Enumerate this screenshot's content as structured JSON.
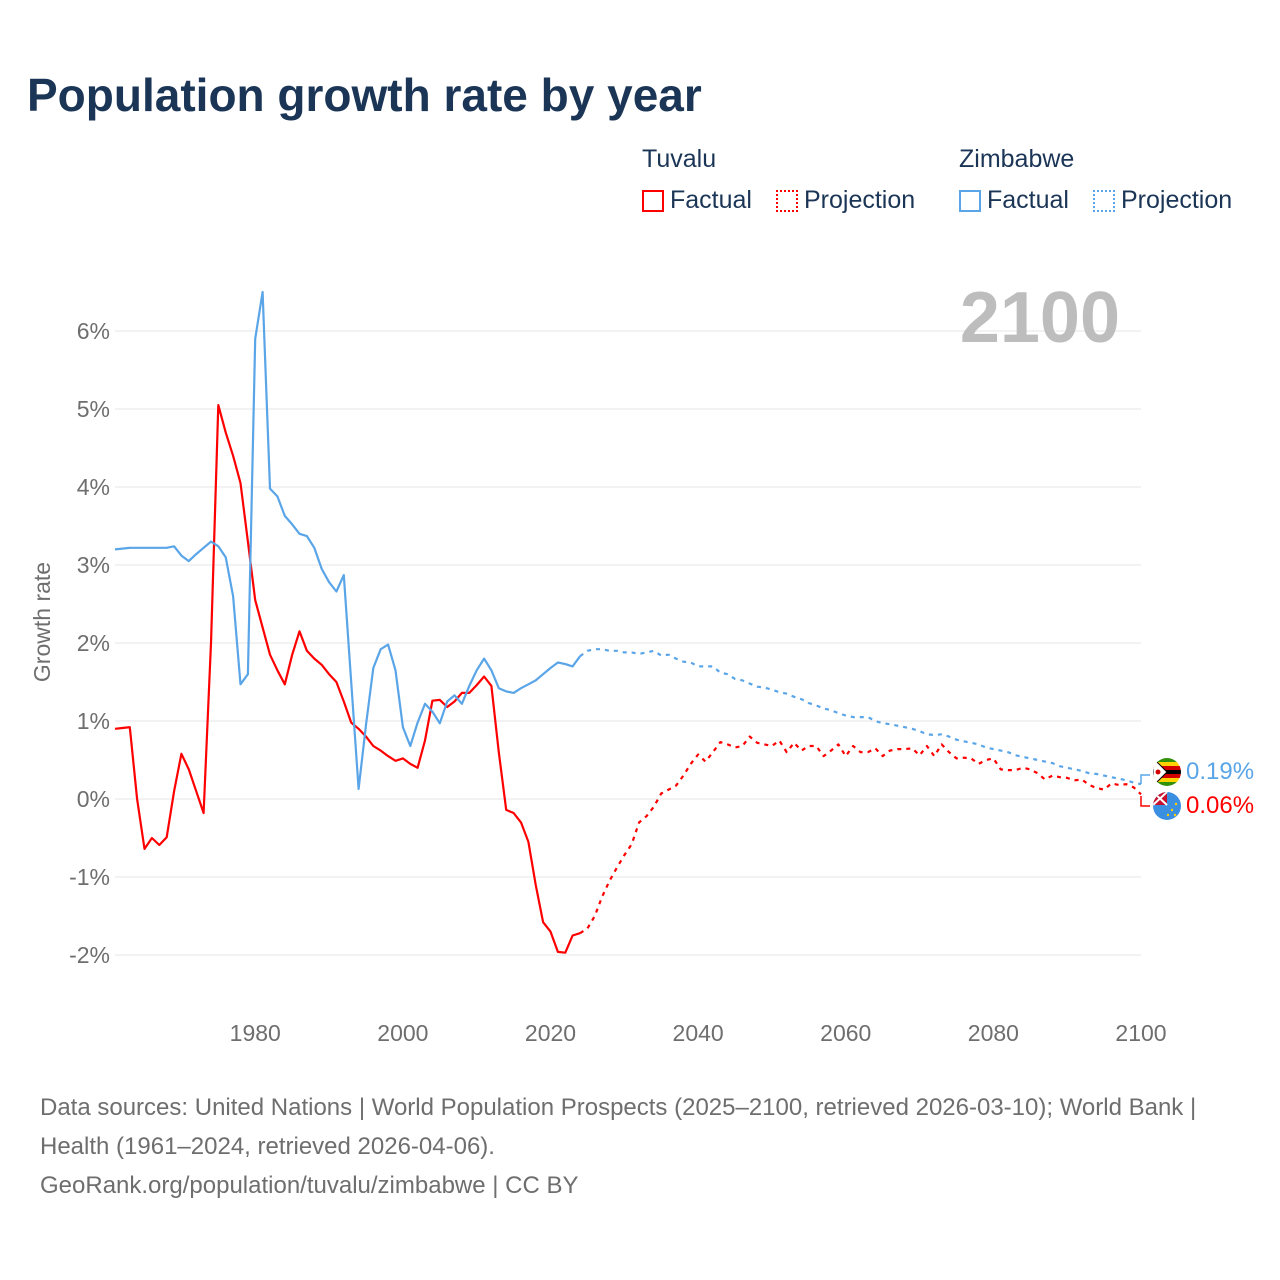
{
  "title": "Population growth rate by year",
  "legend": {
    "groups": [
      {
        "name": "Tuvalu",
        "factual": "Factual",
        "projection": "Projection",
        "color": "#ff0000"
      },
      {
        "name": "Zimbabwe",
        "factual": "Factual",
        "projection": "Projection",
        "color": "#5aa5e8"
      }
    ]
  },
  "footer": {
    "sources": "Data sources: United Nations | World Population Prospects (2025–2100, retrieved 2026-03-10); World Bank | Health (1961–2024, retrieved 2026-04-06).",
    "credit": "GeoRank.org/population/tuvalu/zimbabwe | CC BY"
  },
  "chart_data": {
    "type": "line",
    "title": "Population growth rate by year",
    "ylabel": "Growth rate",
    "xlabel": "",
    "year_label": "2100",
    "xlim": [
      1961,
      2100
    ],
    "ylim": [
      -2.5,
      6.6
    ],
    "x_ticks": [
      "1980",
      "2000",
      "2020",
      "2040",
      "2060",
      "2080",
      "2100"
    ],
    "y_ticks": [
      "-2%",
      "-1%",
      "0%",
      "1%",
      "2%",
      "3%",
      "4%",
      "5%",
      "6%"
    ],
    "grid": true,
    "legend_position": "top-right",
    "series": [
      {
        "name": "Tuvalu Factual",
        "color": "#ff0000",
        "dashed": false,
        "start_year": 1961,
        "values": [
          0.9,
          0.91,
          0.92,
          0.0,
          -0.64,
          -0.5,
          -0.59,
          -0.49,
          0.1,
          0.58,
          0.38,
          0.1,
          -0.18,
          2.0,
          5.05,
          4.7,
          4.4,
          4.05,
          3.3,
          2.55,
          2.2,
          1.85,
          1.65,
          1.47,
          1.85,
          2.15,
          1.9,
          1.8,
          1.72,
          1.6,
          1.5,
          1.25,
          0.98,
          0.9,
          0.8,
          0.68,
          0.62,
          0.55,
          0.49,
          0.52,
          0.45,
          0.4,
          0.75,
          1.26,
          1.27,
          1.18,
          1.25,
          1.36,
          1.36,
          1.46,
          1.57,
          1.45,
          0.6,
          -0.14,
          -0.18,
          -0.3,
          -0.55,
          -1.1,
          -1.58,
          -1.7,
          -1.96,
          -1.97,
          -1.75,
          -1.72
        ]
      },
      {
        "name": "Tuvalu Projection",
        "color": "#ff0000",
        "dashed": true,
        "start_year": 2024,
        "values": [
          -1.72,
          -1.66,
          -1.5,
          -1.25,
          -1.05,
          -0.88,
          -0.72,
          -0.58,
          -0.3,
          -0.22,
          -0.1,
          0.07,
          0.12,
          0.17,
          0.3,
          0.45,
          0.57,
          0.48,
          0.6,
          0.73,
          0.7,
          0.66,
          0.68,
          0.8,
          0.72,
          0.7,
          0.68,
          0.75,
          0.6,
          0.72,
          0.62,
          0.68,
          0.68,
          0.55,
          0.62,
          0.7,
          0.55,
          0.68,
          0.6,
          0.6,
          0.65,
          0.55,
          0.62,
          0.64,
          0.64,
          0.65,
          0.56,
          0.68,
          0.55,
          0.7,
          0.6,
          0.52,
          0.53,
          0.52,
          0.45,
          0.5,
          0.52,
          0.38,
          0.37,
          0.37,
          0.4,
          0.38,
          0.33,
          0.25,
          0.3,
          0.28,
          0.27,
          0.24,
          0.25,
          0.18,
          0.14,
          0.12,
          0.2,
          0.18,
          0.19,
          0.15,
          0.06
        ]
      },
      {
        "name": "Zimbabwe Factual",
        "color": "#5aa5e8",
        "dashed": false,
        "start_year": 1961,
        "values": [
          3.2,
          3.21,
          3.22,
          3.22,
          3.22,
          3.22,
          3.22,
          3.22,
          3.24,
          3.12,
          3.05,
          3.14,
          3.22,
          3.3,
          3.24,
          3.1,
          2.6,
          1.47,
          1.6,
          5.9,
          6.5,
          3.98,
          3.88,
          3.63,
          3.52,
          3.4,
          3.37,
          3.22,
          2.95,
          2.78,
          2.66,
          2.87,
          1.5,
          0.13,
          0.95,
          1.68,
          1.92,
          1.98,
          1.65,
          0.92,
          0.68,
          0.98,
          1.22,
          1.12,
          0.97,
          1.25,
          1.33,
          1.22,
          1.45,
          1.65,
          1.8,
          1.65,
          1.42,
          1.38,
          1.36,
          1.42,
          1.47,
          1.52,
          1.6,
          1.68,
          1.75,
          1.73,
          1.7,
          1.83
        ]
      },
      {
        "name": "Zimbabwe Projection",
        "color": "#5aa5e8",
        "dashed": true,
        "start_year": 2024,
        "values": [
          1.83,
          1.9,
          1.92,
          1.92,
          1.9,
          1.9,
          1.88,
          1.88,
          1.86,
          1.88,
          1.9,
          1.84,
          1.85,
          1.8,
          1.76,
          1.75,
          1.7,
          1.7,
          1.7,
          1.62,
          1.6,
          1.54,
          1.52,
          1.48,
          1.44,
          1.43,
          1.4,
          1.37,
          1.35,
          1.31,
          1.28,
          1.23,
          1.2,
          1.16,
          1.14,
          1.1,
          1.07,
          1.05,
          1.05,
          1.05,
          1.0,
          0.97,
          0.96,
          0.94,
          0.92,
          0.9,
          0.87,
          0.83,
          0.82,
          0.83,
          0.8,
          0.76,
          0.74,
          0.72,
          0.7,
          0.66,
          0.64,
          0.62,
          0.6,
          0.56,
          0.54,
          0.52,
          0.5,
          0.48,
          0.46,
          0.42,
          0.4,
          0.38,
          0.36,
          0.33,
          0.32,
          0.3,
          0.28,
          0.26,
          0.24,
          0.21,
          0.19
        ]
      }
    ],
    "end_labels": [
      {
        "country": "Zimbabwe",
        "text": "0.19%",
        "color": "#5aa5e8"
      },
      {
        "country": "Tuvalu",
        "text": "0.06%",
        "color": "#ff0000"
      }
    ]
  }
}
